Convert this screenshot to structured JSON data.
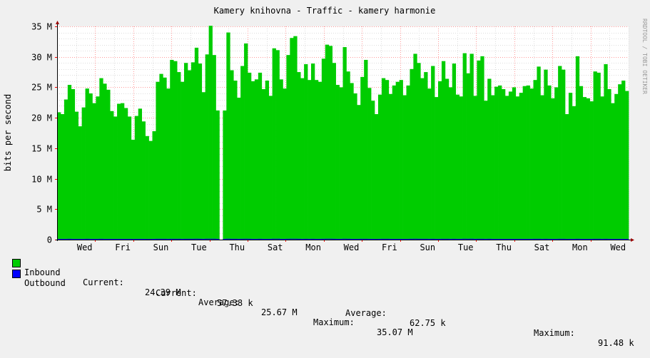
{
  "chart_data": {
    "type": "area",
    "title": "Kamery knihovna - Traffic - kamery harmonie",
    "ylabel": "bits per second",
    "watermark": "RRDTOOL / TOBI OETIKER",
    "ylim": [
      0,
      35000000
    ],
    "y_ticks": [
      {
        "value": 0,
        "label": "0"
      },
      {
        "value": 5000000,
        "label": "5 M"
      },
      {
        "value": 10000000,
        "label": "10 M"
      },
      {
        "value": 15000000,
        "label": "15 M"
      },
      {
        "value": 20000000,
        "label": "20 M"
      },
      {
        "value": 25000000,
        "label": "25 M"
      },
      {
        "value": 30000000,
        "label": "30 M"
      },
      {
        "value": 35000000,
        "label": "35 M"
      }
    ],
    "x_ticks": [
      "Wed",
      "Fri",
      "Sun",
      "Tue",
      "Thu",
      "Sat",
      "Mon",
      "Wed",
      "Fri",
      "Sun",
      "Tue",
      "Thu",
      "Sat",
      "Mon",
      "Wed"
    ],
    "colors": {
      "inbound": "#00cc00",
      "outbound": "#0000ff",
      "grid": "#ff9999",
      "axis": "#999999",
      "arrow": "#990000"
    },
    "series": [
      {
        "name": "Inbound",
        "unit": "bps",
        "values": [
          20.9,
          20.6,
          23.0,
          25.4,
          24.7,
          21.0,
          18.6,
          21.7,
          24.8,
          24.0,
          22.4,
          23.5,
          26.5,
          25.6,
          24.6,
          21.1,
          20.2,
          22.3,
          22.4,
          21.6,
          20.2,
          16.4,
          20.3,
          21.5,
          19.4,
          17.0,
          16.2,
          17.8,
          25.9,
          27.2,
          26.6,
          24.8,
          29.5,
          29.3,
          27.5,
          25.9,
          29.0,
          27.8,
          29.1,
          31.5,
          28.9,
          24.2,
          30.4,
          35.1,
          30.3,
          21.2,
          null,
          21.2,
          34.0,
          27.8,
          26.1,
          23.3,
          28.5,
          32.2,
          27.4,
          26.0,
          26.3,
          27.4,
          24.7,
          26.1,
          23.6,
          31.4,
          31.1,
          26.3,
          24.8,
          30.3,
          33.1,
          33.4,
          27.5,
          26.5,
          28.8,
          26.2,
          28.9,
          26.2,
          25.9,
          29.7,
          32.0,
          31.8,
          29.0,
          25.4,
          25.0,
          31.6,
          27.6,
          25.7,
          24.0,
          22.1,
          26.7,
          29.5,
          24.9,
          22.8,
          20.6,
          23.8,
          26.5,
          26.2,
          23.9,
          25.3,
          25.9,
          26.2,
          23.7,
          25.3,
          28.0,
          30.5,
          29.0,
          26.5,
          27.5,
          24.8,
          28.5,
          23.4,
          26.0,
          29.3,
          26.4,
          25.0,
          28.9,
          23.8,
          23.5,
          30.6,
          27.3,
          30.5,
          23.6,
          29.4,
          30.1,
          22.8,
          26.4,
          23.7,
          25.1,
          25.3,
          24.7,
          23.6,
          24.3,
          25.0,
          23.5,
          24.1,
          25.2,
          25.3,
          24.8,
          26.2,
          28.4,
          23.7,
          27.9,
          25.3,
          23.2,
          25.0,
          28.5,
          27.9,
          20.6,
          24.1,
          21.9,
          30.1,
          25.2,
          23.4,
          23.2,
          22.7,
          27.6,
          27.4,
          23.5,
          28.8,
          24.7,
          22.4,
          23.9,
          25.5,
          26.1,
          24.4
        ]
      },
      {
        "name": "Outbound",
        "unit": "bps",
        "values": [
          0.06,
          0.06,
          0.06,
          0.07,
          0.06,
          0.06,
          0.06,
          0.06,
          0.07,
          0.06,
          0.06,
          0.06,
          0.07,
          0.06,
          0.06,
          0.06,
          0.06,
          0.06,
          0.06,
          0.06,
          0.06,
          0.05,
          0.06,
          0.06,
          0.06,
          0.05,
          0.05,
          0.06,
          0.07,
          0.07,
          0.07,
          0.06,
          0.07,
          0.07,
          0.07,
          0.06,
          0.07,
          0.07,
          0.07,
          0.08,
          0.07,
          0.06,
          0.08,
          0.09,
          0.08,
          0.06,
          null,
          0.06,
          0.09,
          0.07,
          0.07,
          0.06,
          0.07,
          0.08,
          0.07,
          0.06,
          0.06,
          0.07,
          0.06,
          0.06,
          0.06,
          0.08,
          0.08,
          0.06,
          0.06,
          0.07,
          0.08,
          0.08,
          0.07,
          0.06,
          0.07,
          0.06,
          0.07,
          0.06,
          0.06,
          0.07,
          0.08,
          0.08,
          0.07,
          0.06,
          0.06,
          0.08,
          0.07,
          0.06,
          0.06,
          0.06,
          0.07,
          0.07,
          0.06,
          0.06,
          0.05,
          0.06,
          0.07,
          0.07,
          0.06,
          0.06,
          0.06,
          0.06,
          0.06,
          0.06,
          0.07,
          0.08,
          0.07,
          0.07,
          0.07,
          0.06,
          0.07,
          0.06,
          0.06,
          0.07,
          0.07,
          0.06,
          0.07,
          0.06,
          0.06,
          0.08,
          0.07,
          0.08,
          0.06,
          0.07,
          0.07,
          0.06,
          0.07,
          0.06,
          0.06,
          0.06,
          0.06,
          0.06,
          0.06,
          0.06,
          0.06,
          0.06,
          0.06,
          0.06,
          0.06,
          0.07,
          0.07,
          0.06,
          0.07,
          0.06,
          0.06,
          0.06,
          0.07,
          0.07,
          0.05,
          0.06,
          0.06,
          0.07,
          0.06,
          0.06,
          0.06,
          0.06,
          0.07,
          0.07,
          0.06,
          0.07,
          0.06,
          0.06,
          0.06,
          0.06,
          0.06,
          0.06
        ]
      }
    ],
    "series_scale": 1000000,
    "legend": {
      "inbound": {
        "label": "Inbound",
        "current_label": "Current:",
        "current": "24.39 M",
        "average_label": "Average:",
        "average": "25.67 M",
        "maximum_label": "Maximum:",
        "maximum": "35.07 M"
      },
      "outbound": {
        "label": "Outbound",
        "current_label": "Current:",
        "current": "57.38 k",
        "average_label": "Average:",
        "average": "62.75 k",
        "maximum_label": "Maximum:",
        "maximum": "91.48 k"
      }
    }
  }
}
